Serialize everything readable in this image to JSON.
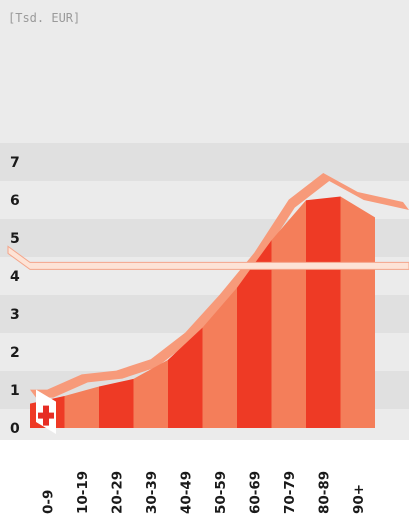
{
  "chart_data": {
    "type": "area",
    "unit_label": "[Tsd. EUR]",
    "categories": [
      "0-9",
      "10-19",
      "20-29",
      "30-39",
      "40-49",
      "50-59",
      "60-69",
      "70-79",
      "80-89",
      "90+"
    ],
    "values": [
      0.8,
      1.2,
      1.3,
      1.6,
      2.3,
      3.3,
      4.4,
      5.8,
      6.5,
      6.0
    ],
    "yticks": [
      "0",
      "1",
      "2",
      "3",
      "4",
      "5",
      "6",
      "7"
    ],
    "ylim": [
      0,
      7
    ],
    "average_line": 4.2,
    "grid": "alternating bands",
    "colors": {
      "band": "#e0e0e0",
      "top_face": "#f79a7a",
      "front_light": "#f47e5a",
      "front_dark": "#ee3a25",
      "average": "#fde3d6",
      "average_stroke": "#f4a58a",
      "cross": "#e62d24"
    },
    "logo": "red-cross"
  }
}
